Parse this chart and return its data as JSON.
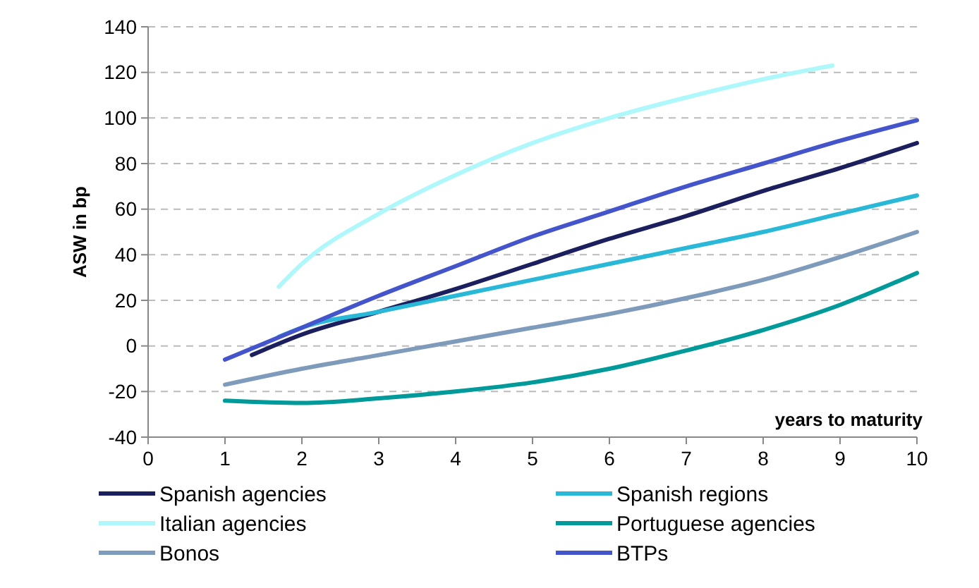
{
  "chart_data": {
    "type": "line",
    "xlabel": "years to maturity",
    "ylabel": "ASW in bp",
    "xlim": [
      0,
      10
    ],
    "xticks": [
      0,
      1,
      2,
      3,
      4,
      5,
      6,
      7,
      8,
      9,
      10
    ],
    "ylim": [
      -40,
      140
    ],
    "yticks": [
      -40,
      -20,
      0,
      20,
      40,
      60,
      80,
      100,
      120,
      140
    ],
    "grid": "y",
    "legend": "bottom",
    "marker": "none",
    "line_style": "solid",
    "series": [
      {
        "name": "Spanish agencies",
        "color": "#1b1f5e",
        "x": [
          1.35,
          2,
          3,
          4,
          5,
          6,
          7,
          8,
          9,
          10
        ],
        "values": [
          -4,
          5,
          15,
          25,
          36,
          47,
          57,
          68,
          78,
          89
        ]
      },
      {
        "name": "Spanish regions",
        "color": "#29b8d8",
        "x": [
          1.7,
          2,
          3,
          4,
          5,
          6,
          7,
          8,
          9,
          10
        ],
        "values": [
          4,
          8,
          15,
          22,
          29,
          36,
          43,
          50,
          58,
          66
        ]
      },
      {
        "name": "Italian agencies",
        "color": "#aef8fc",
        "x": [
          1.7,
          2,
          3,
          4,
          5,
          6,
          7,
          8,
          8.9
        ],
        "values": [
          26,
          36,
          58,
          75,
          89,
          100,
          109,
          117,
          123
        ]
      },
      {
        "name": "Portuguese agencies",
        "color": "#009a9a",
        "x": [
          1,
          2,
          3,
          4,
          5,
          6,
          7,
          8,
          9,
          10
        ],
        "values": [
          -24,
          -25,
          -23,
          -20,
          -16,
          -10,
          -2,
          7,
          18,
          32
        ]
      },
      {
        "name": "Bonos",
        "color": "#7f9bbb",
        "x": [
          1,
          2,
          3,
          4,
          5,
          6,
          7,
          8,
          9,
          10
        ],
        "values": [
          -17,
          -10,
          -4,
          2,
          8,
          14,
          21,
          29,
          39,
          50
        ]
      },
      {
        "name": "BTPs",
        "color": "#4455cc",
        "x": [
          1,
          2,
          3,
          4,
          5,
          6,
          7,
          8,
          9,
          10
        ],
        "values": [
          -6,
          8,
          22,
          35,
          48,
          59,
          70,
          80,
          90,
          99
        ]
      }
    ]
  }
}
